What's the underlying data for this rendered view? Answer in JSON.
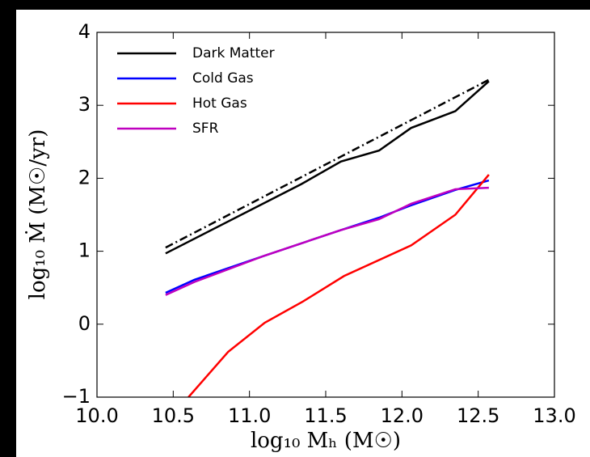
{
  "chart_data": {
    "type": "line",
    "x_label": "log₁₀ Mₕ (M☉)",
    "y_label": "log₁₀ Ṁ (M☉/yr)",
    "xlim": [
      10.0,
      13.0
    ],
    "xticks": [
      {
        "value": 10,
        "label": "10.0"
      },
      {
        "value": 10.5,
        "label": "10.5"
      },
      {
        "value": 11,
        "label": "11.0"
      },
      {
        "value": 11.5,
        "label": "11.5"
      },
      {
        "value": 12,
        "label": "12.0"
      },
      {
        "value": 12.5,
        "label": "12.5"
      },
      {
        "value": 13,
        "label": "13.0"
      }
    ],
    "ylim": [
      -1,
      4
    ],
    "yticks": [
      {
        "value": -1,
        "label": "−1"
      },
      0,
      1,
      2,
      3,
      4
    ],
    "legend": "upper left",
    "series": [
      {
        "name": "Dark Matter",
        "color": "#000000",
        "x": [
          10.45,
          11.34,
          11.6,
          11.85,
          12.06,
          12.35,
          12.57
        ],
        "values": [
          0.97,
          1.92,
          2.23,
          2.38,
          2.69,
          2.92,
          3.33
        ]
      },
      {
        "name": "Cold Gas",
        "color": "#0000ff",
        "x": [
          10.45,
          10.64,
          11.1,
          11.6,
          11.85,
          12.06,
          12.35,
          12.57
        ],
        "values": [
          0.43,
          0.61,
          0.94,
          1.29,
          1.46,
          1.63,
          1.84,
          1.97
        ]
      },
      {
        "name": "Hot Gas",
        "color": "#ff0000",
        "x": [
          10.6,
          10.86,
          11.1,
          11.35,
          11.62,
          12.06,
          12.35,
          12.57
        ],
        "values": [
          -1.0,
          -0.38,
          0.02,
          0.31,
          0.66,
          1.08,
          1.5,
          2.05
        ]
      },
      {
        "name": "SFR",
        "color": "#bf00bf",
        "x": [
          10.45,
          10.64,
          11.1,
          11.6,
          11.85,
          12.06,
          12.35,
          12.57
        ],
        "values": [
          0.4,
          0.58,
          0.94,
          1.29,
          1.44,
          1.65,
          1.85,
          1.87
        ]
      },
      {
        "color": "#000000",
        "dash": "dashdot",
        "x": [
          10.45,
          12.57
        ],
        "values": [
          1.05,
          3.35
        ]
      }
    ]
  }
}
